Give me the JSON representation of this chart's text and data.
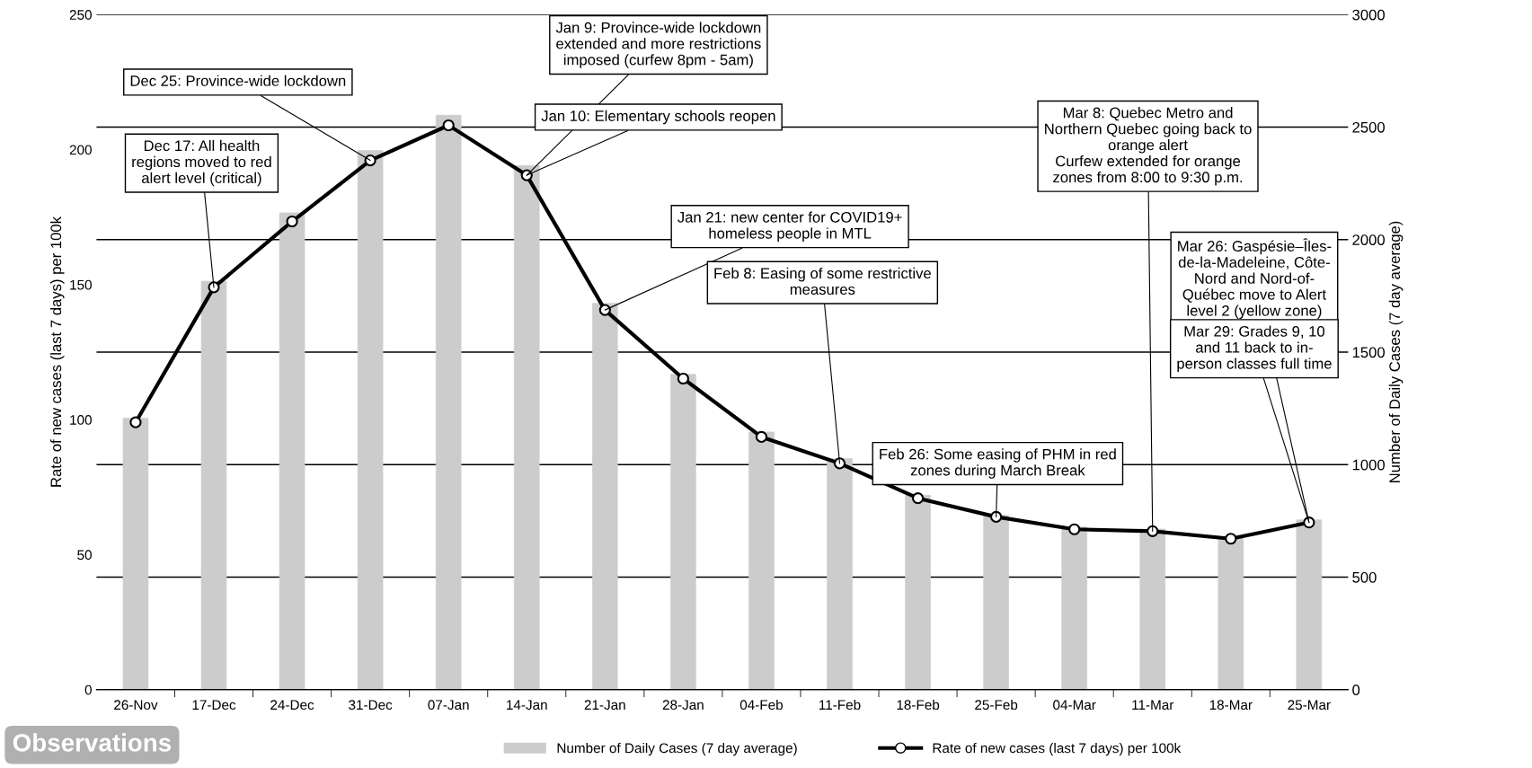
{
  "chart_data": {
    "type": "bar",
    "categories": [
      "26-Nov",
      "17-Dec",
      "24-Dec",
      "31-Dec",
      "07-Jan",
      "14-Jan",
      "21-Jan",
      "28-Jan",
      "04-Feb",
      "11-Feb",
      "18-Feb",
      "25-Feb",
      "04-Mar",
      "11-Mar",
      "18-Mar",
      "25-Mar"
    ],
    "series": [
      {
        "name": "Number of Daily Cases (7 day average)",
        "type": "bar",
        "axis": "y2",
        "color": "#cccccc",
        "values": [
          1207,
          1815,
          2119,
          2396,
          2553,
          2329,
          1717,
          1401,
          1145,
          1027,
          864,
          775,
          723,
          714,
          677,
          755
        ]
      },
      {
        "name": "Rate of new cases (last 7 days) per 100k",
        "type": "line",
        "axis": "y",
        "color": "#000000",
        "marker": "circle",
        "values": [
          99,
          149,
          173.4,
          196,
          209,
          190.5,
          140.6,
          115.2,
          93.6,
          83.8,
          70.9,
          64.0,
          59.4,
          58.7,
          55.9,
          61.9
        ]
      }
    ],
    "ylabel": "Rate of new cases (last 7 days) per 100k",
    "y2label": "Number of Daily Cases (7 day average)",
    "ylim": [
      0,
      250
    ],
    "yticks": [
      0,
      50,
      100,
      150,
      200,
      250
    ],
    "y2lim": [
      0,
      3000
    ],
    "y2ticks": [
      0,
      500,
      1000,
      1500,
      2000,
      2500,
      3000
    ],
    "grid": "y2",
    "legend": "bottom",
    "annotations": [
      {
        "text": "Dec 17: All health\nregions moved to red\nalert level (critical)",
        "x": "17-Dec",
        "y": 149
      },
      {
        "text": "Dec 25: Province-wide lockdown",
        "x": "31-Dec",
        "y": 196
      },
      {
        "text": "Jan 9: Province-wide lockdown\nextended and more restrictions\nimposed (curfew 8pm - 5am)",
        "x": "14-Jan",
        "y": 190.5
      },
      {
        "text": "Jan 10: Elementary schools reopen",
        "x": "14-Jan",
        "y": 190.5
      },
      {
        "text": "Jan 21: new center for COVID19+\nhomeless people in MTL",
        "x": "21-Jan",
        "y": 140.6
      },
      {
        "text": "Feb 8: Easing of some restrictive\nmeasures",
        "x": "11-Feb",
        "y": 83.8
      },
      {
        "text": "Feb 26: Some easing of PHM in red\nzones during March Break",
        "x": "25-Feb",
        "y": 64.0
      },
      {
        "text": "Mar 8: Quebec Metro and\nNorthern Quebec going back to\norange alert\nCurfew extended for orange\nzones from 8:00 to 9:30 p.m.",
        "x": "11-Mar",
        "y": 58.7
      },
      {
        "text": "Mar 26: Gaspésie–Îles-\nde-la-Madeleine, Côte-\nNord and Nord-of-\nQuébec move to Alert\nlevel 2 (yellow zone)",
        "x": "25-Mar",
        "y": 61.9
      },
      {
        "text": "Mar 29: Grades 9, 10\nand 11 back to in-\nperson classes full time",
        "x": "25-Mar",
        "y": 61.9
      },
      "Observations"
    ]
  }
}
